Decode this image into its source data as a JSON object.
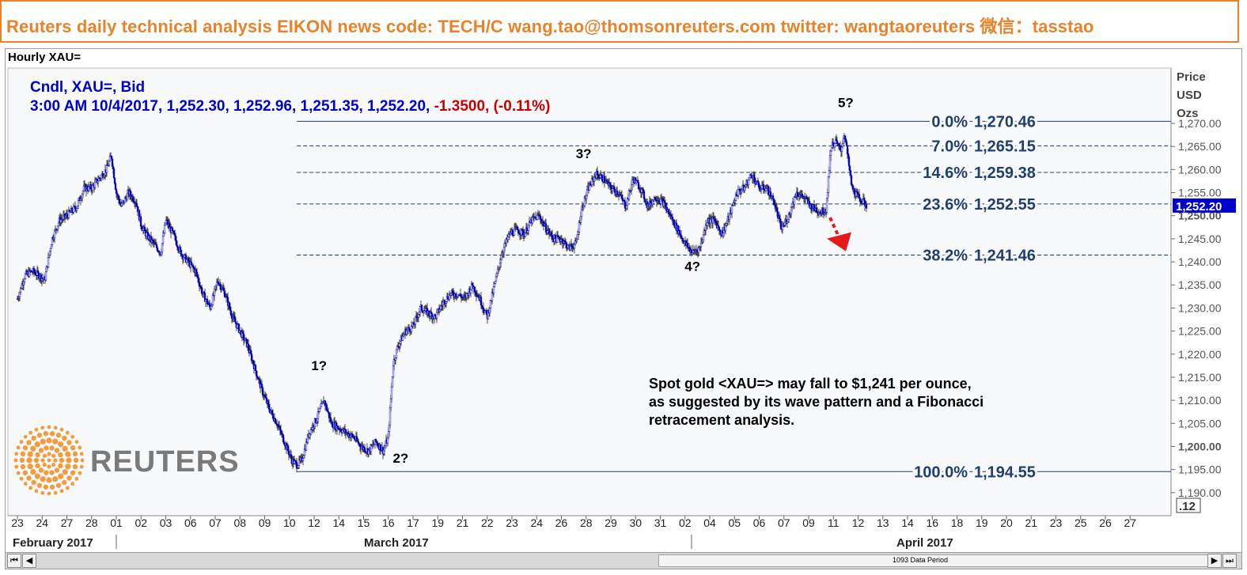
{
  "banner": {
    "text": "Reuters daily technical analysis  EIKON news code: TECH/C  wang.tao@thomsonreuters.com  twitter:  wangtaoreuters   微信：tasstao",
    "color": "#e8822b"
  },
  "chart_title": "Hourly XAU=",
  "logo": {
    "text": "REUTERS",
    "dot_color": "#f39c3d",
    "text_color": "#7a7a7a"
  },
  "scrollbar": {
    "period_label": "1093 Data Period",
    "left_buttons": [
      "⏮",
      "◀"
    ],
    "right_buttons": [
      "▶",
      "⏭"
    ]
  },
  "chart_data": {
    "type": "candlestick",
    "instrument": "XAU=",
    "legend": {
      "line1": "Cndl, XAU=, Bid",
      "line2_prefix": "3:00 AM 10/4/2017, 1,252.30, 1,252.96, 1,251.35, 1,252.20, ",
      "line2_change": "-1.3500, (-0.11%)",
      "color": "#0000cc",
      "change_color": "#cc0000"
    },
    "ylabel": [
      "Price",
      "USD",
      "Ozs"
    ],
    "ylim": [
      1185,
      1282
    ],
    "y_ticks": [
      {
        "v": 1190,
        "label": "1,190.00"
      },
      {
        "v": 1195,
        "label": "1,195.00"
      },
      {
        "v": 1200,
        "label": "1,200.00",
        "bold": true
      },
      {
        "v": 1205,
        "label": "1,205.00"
      },
      {
        "v": 1210,
        "label": "1,210.00"
      },
      {
        "v": 1215,
        "label": "1,215.00"
      },
      {
        "v": 1220,
        "label": "1,220.00"
      },
      {
        "v": 1225,
        "label": "1,225.00"
      },
      {
        "v": 1230,
        "label": "1,230.00"
      },
      {
        "v": 1235,
        "label": "1,235.00"
      },
      {
        "v": 1240,
        "label": "1,240.00"
      },
      {
        "v": 1245,
        "label": "1,245.00"
      },
      {
        "v": 1250,
        "label": "1,250.00",
        "bold": true
      },
      {
        "v": 1255,
        "label": "1,255.00"
      },
      {
        "v": 1260,
        "label": "1,260.00"
      },
      {
        "v": 1265,
        "label": "1,265.00"
      },
      {
        "v": 1270,
        "label": "1,270.00"
      }
    ],
    "last_price_label": "1,252.20",
    "corner_label": ".12",
    "x_date_labels": [
      "23",
      "24",
      "27",
      "28",
      "01",
      "02",
      "03",
      "06",
      "07",
      "08",
      "09",
      "10",
      "12",
      "14",
      "15",
      "16",
      "17",
      "19",
      "21",
      "22",
      "23",
      "24",
      "26",
      "28",
      "29",
      "30",
      "31",
      "02",
      "04",
      "05",
      "06",
      "07",
      "09",
      "11",
      "12",
      "13",
      "14",
      "16",
      "18",
      "19",
      "20",
      "21",
      "23",
      "25",
      "26",
      "27"
    ],
    "x_month_labels": [
      "February 2017",
      "March 2017",
      "April 2017"
    ],
    "x_num_slots": 46,
    "price_path": [
      [
        0,
        1232
      ],
      [
        0.3,
        1237
      ],
      [
        0.6,
        1238
      ],
      [
        0.9,
        1237
      ],
      [
        1.1,
        1236
      ],
      [
        1.4,
        1245
      ],
      [
        1.7,
        1249
      ],
      [
        2.0,
        1250
      ],
      [
        2.4,
        1252
      ],
      [
        2.7,
        1256
      ],
      [
        3.0,
        1256
      ],
      [
        3.3,
        1258
      ],
      [
        3.6,
        1260
      ],
      [
        3.8,
        1263
      ],
      [
        4.0,
        1255
      ],
      [
        4.2,
        1252
      ],
      [
        4.5,
        1255
      ],
      [
        4.8,
        1253
      ],
      [
        5.0,
        1248
      ],
      [
        5.2,
        1246
      ],
      [
        5.5,
        1244
      ],
      [
        5.8,
        1242
      ],
      [
        6.0,
        1249
      ],
      [
        6.3,
        1246
      ],
      [
        6.6,
        1242
      ],
      [
        6.9,
        1240
      ],
      [
        7.2,
        1238
      ],
      [
        7.5,
        1233
      ],
      [
        7.8,
        1230
      ],
      [
        8.1,
        1236
      ],
      [
        8.4,
        1233
      ],
      [
        8.7,
        1228
      ],
      [
        9.0,
        1225
      ],
      [
        9.3,
        1222
      ],
      [
        9.6,
        1217
      ],
      [
        9.9,
        1212
      ],
      [
        10.2,
        1208
      ],
      [
        10.5,
        1205
      ],
      [
        10.8,
        1201
      ],
      [
        11.1,
        1197
      ],
      [
        11.3,
        1196
      ],
      [
        11.5,
        1197
      ],
      [
        11.8,
        1203
      ],
      [
        12.1,
        1206
      ],
      [
        12.4,
        1210
      ],
      [
        12.7,
        1205
      ],
      [
        13.0,
        1204
      ],
      [
        13.3,
        1203
      ],
      [
        13.6,
        1202
      ],
      [
        13.9,
        1200
      ],
      [
        14.2,
        1199
      ],
      [
        14.5,
        1201
      ],
      [
        14.8,
        1199
      ],
      [
        15.0,
        1202
      ],
      [
        15.2,
        1218
      ],
      [
        15.4,
        1222
      ],
      [
        15.7,
        1225
      ],
      [
        16.0,
        1226
      ],
      [
        16.3,
        1230
      ],
      [
        16.6,
        1229
      ],
      [
        16.9,
        1228
      ],
      [
        17.2,
        1231
      ],
      [
        17.5,
        1233
      ],
      [
        17.8,
        1233
      ],
      [
        18.1,
        1232
      ],
      [
        18.4,
        1235
      ],
      [
        18.7,
        1232
      ],
      [
        19.0,
        1228
      ],
      [
        19.3,
        1235
      ],
      [
        19.6,
        1242
      ],
      [
        19.9,
        1246
      ],
      [
        20.2,
        1247
      ],
      [
        20.5,
        1246
      ],
      [
        20.8,
        1249
      ],
      [
        21.1,
        1250
      ],
      [
        21.4,
        1247
      ],
      [
        21.7,
        1245
      ],
      [
        22.0,
        1245
      ],
      [
        22.3,
        1243
      ],
      [
        22.6,
        1244
      ],
      [
        22.8,
        1251
      ],
      [
        23.1,
        1256
      ],
      [
        23.4,
        1259
      ],
      [
        23.7,
        1258
      ],
      [
        24.0,
        1256
      ],
      [
        24.3,
        1255
      ],
      [
        24.6,
        1252
      ],
      [
        24.9,
        1258
      ],
      [
        25.2,
        1256
      ],
      [
        25.5,
        1252
      ],
      [
        25.8,
        1254
      ],
      [
        26.1,
        1253
      ],
      [
        26.4,
        1250
      ],
      [
        26.7,
        1247
      ],
      [
        27.0,
        1244
      ],
      [
        27.3,
        1242
      ],
      [
        27.6,
        1243
      ],
      [
        27.9,
        1249
      ],
      [
        28.2,
        1249
      ],
      [
        28.5,
        1246
      ],
      [
        28.8,
        1250
      ],
      [
        29.1,
        1255
      ],
      [
        29.4,
        1256
      ],
      [
        29.7,
        1259
      ],
      [
        30.0,
        1256
      ],
      [
        30.3,
        1256
      ],
      [
        30.6,
        1253
      ],
      [
        30.9,
        1247
      ],
      [
        31.2,
        1250
      ],
      [
        31.5,
        1255
      ],
      [
        31.8,
        1254
      ],
      [
        32.1,
        1252
      ],
      [
        32.4,
        1251
      ],
      [
        32.7,
        1251
      ],
      [
        32.9,
        1265
      ],
      [
        33.1,
        1266
      ],
      [
        33.3,
        1264
      ],
      [
        33.45,
        1268
      ],
      [
        33.6,
        1262
      ],
      [
        33.75,
        1256
      ],
      [
        34.0,
        1254
      ],
      [
        34.2,
        1253
      ],
      [
        34.35,
        1252.2
      ]
    ],
    "fibonacci": {
      "levels": [
        {
          "pct": "0.0%",
          "value": 1270.46,
          "label": "1,270.46",
          "style": "solid"
        },
        {
          "pct": "7.0%",
          "value": 1265.15,
          "label": "1,265.15",
          "style": "dashed"
        },
        {
          "pct": "14.6%",
          "value": 1259.38,
          "label": "1,259.38",
          "style": "dashed"
        },
        {
          "pct": "23.6%",
          "value": 1252.55,
          "label": "1,252.55",
          "style": "dashed"
        },
        {
          "pct": "38.2%",
          "value": 1241.46,
          "label": "1,241.46",
          "style": "dashed"
        },
        {
          "pct": "100.0%",
          "value": 1194.55,
          "label": "1,194.55",
          "style": "solid"
        }
      ],
      "color": "#1f3f6e",
      "start_slot": 11.3,
      "upper_start_slot": 11.3
    },
    "wave_labels": [
      {
        "text": "1?",
        "slot": 12.2,
        "price": 1216.5
      },
      {
        "text": "2?",
        "slot": 15.5,
        "price": 1196.5
      },
      {
        "text": "3?",
        "slot": 22.9,
        "price": 1262.5
      },
      {
        "text": "4?",
        "slot": 27.3,
        "price": 1238.0
      },
      {
        "text": "5?",
        "slot": 33.5,
        "price": 1273.5
      }
    ],
    "annotation": [
      "Spot gold <XAU=> may fall to $1,241 per ounce,",
      "as suggested by its wave pattern and a Fibonacci",
      "retracement analysis."
    ],
    "arrow_color": "#e51b1b",
    "candle_color": "#0000cc"
  }
}
